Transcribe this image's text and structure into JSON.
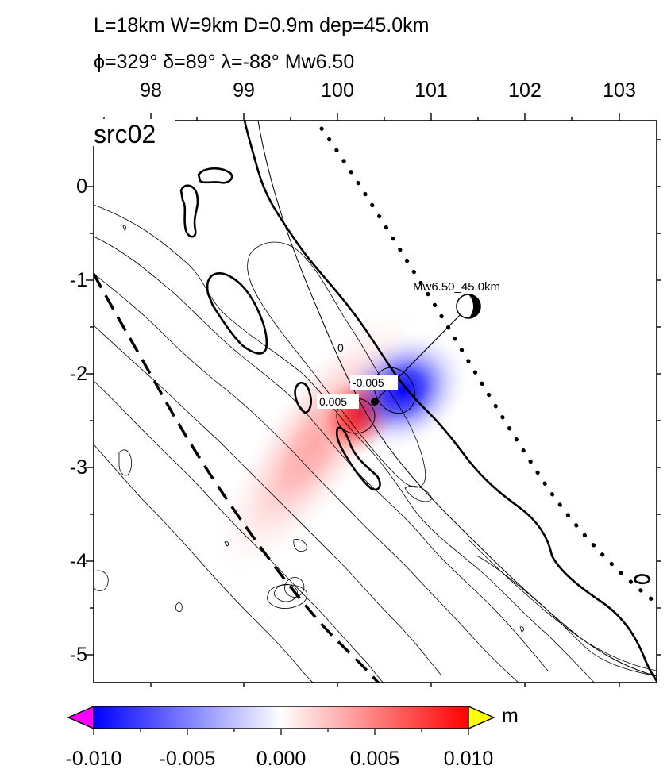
{
  "header": {
    "line1": "L=18km W=9km D=0.9m dep=45.0km",
    "line2": "ϕ=329° δ=89° λ=-88° Mw6.50"
  },
  "panel_label": "src02",
  "axes": {
    "lon_ticks": [
      "98",
      "99",
      "100",
      "101",
      "102",
      "103"
    ],
    "lat_ticks": [
      "0",
      "-1",
      "-2",
      "-3",
      "-4",
      "-5"
    ],
    "lon_range": [
      97.4,
      103.4
    ],
    "lat_range": [
      -5.3,
      0.7
    ]
  },
  "event": {
    "label": "Mw6.50_45.0km",
    "epicenter": [
      100.38,
      -2.29
    ],
    "beachball_lon": 101.4,
    "beachball_lat": -1.27
  },
  "contour_labels": {
    "zero": "0",
    "negative": "-0.005",
    "positive": "0.005"
  },
  "colorbar": {
    "unit": "m",
    "ticks": [
      "-0.010",
      "-0.005",
      "0.000",
      "0.005",
      "0.010"
    ],
    "range": [
      -0.01,
      0.01
    ],
    "colors": {
      "low": "#0000ff",
      "mid": "#ffffff",
      "high": "#ff0000",
      "under": "#ff00ff",
      "over": "#ffff00"
    }
  }
}
